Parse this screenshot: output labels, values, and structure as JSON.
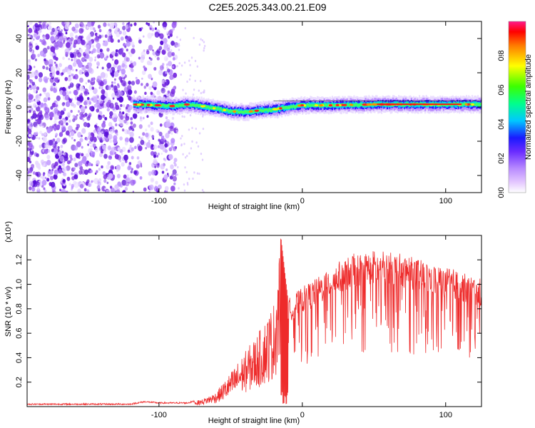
{
  "title": "C2E5.2025.343.00.21.E09",
  "colors": {
    "snr_line": "#ee2b2b",
    "noise": "#7a2ee0",
    "background": "#ffffff",
    "axis": "#000000"
  },
  "chart_data": [
    {
      "type": "heatmap",
      "name": "spectrogram",
      "xlabel": "Height of straight line (km)",
      "ylabel": "Frequency (Hz)",
      "xlim": [
        -192,
        125
      ],
      "ylim": [
        -50,
        50
      ],
      "xticks": [
        -100,
        0,
        100
      ],
      "xtick_labels": [
        "-100",
        "0",
        "100"
      ],
      "yticks": [
        -40,
        -20,
        0,
        20,
        40
      ],
      "ytick_labels": [
        "-40",
        "-20",
        "0",
        "20",
        "40"
      ],
      "noise_region_x": [
        -192,
        -88
      ],
      "signal_start_x": -118,
      "signal_track": [
        {
          "x": -118,
          "f": 1.5
        },
        {
          "x": -100,
          "f": 1.0
        },
        {
          "x": -90,
          "f": 0.5
        },
        {
          "x": -80,
          "f": 1.5
        },
        {
          "x": -70,
          "f": 0.5
        },
        {
          "x": -60,
          "f": -1.0
        },
        {
          "x": -50,
          "f": -2.5
        },
        {
          "x": -40,
          "f": -3.0
        },
        {
          "x": -30,
          "f": -2.0
        },
        {
          "x": -20,
          "f": -1.5
        },
        {
          "x": -10,
          "f": 0.0
        },
        {
          "x": 0,
          "f": 1.0
        },
        {
          "x": 20,
          "f": 1.0
        },
        {
          "x": 50,
          "f": 1.5
        },
        {
          "x": 80,
          "f": 1.5
        },
        {
          "x": 110,
          "f": 1.5
        },
        {
          "x": 125,
          "f": 1.5
        }
      ],
      "colorbar": {
        "label": "Normalized spectral amplitude",
        "range": [
          0,
          1
        ],
        "ticks": [
          0.0,
          0.2,
          0.4,
          0.6,
          0.8
        ],
        "tick_labels": [
          "0.0",
          "0.2",
          "0.4",
          "0.6",
          "0.8"
        ]
      }
    },
    {
      "type": "line",
      "name": "snr",
      "xlabel": "Height of straight line (km)",
      "ylabel": "SNR (10 * v/v)",
      "y_multiplier": "(x10⁴)",
      "xlim": [
        -192,
        125
      ],
      "ylim": [
        0,
        1.4
      ],
      "xticks": [
        -100,
        0,
        100
      ],
      "xtick_labels": [
        "-100",
        "0",
        "100"
      ],
      "yticks": [
        0.2,
        0.4,
        0.6,
        0.8,
        1.0,
        1.2
      ],
      "ytick_labels": [
        "0.2",
        "0.4",
        "0.6",
        "0.8",
        "1.0",
        "1.2"
      ],
      "envelope": [
        {
          "x": -192,
          "y": 0.02
        },
        {
          "x": -120,
          "y": 0.02
        },
        {
          "x": -110,
          "y": 0.04
        },
        {
          "x": -100,
          "y": 0.03
        },
        {
          "x": -80,
          "y": 0.03
        },
        {
          "x": -70,
          "y": 0.06
        },
        {
          "x": -60,
          "y": 0.12
        },
        {
          "x": -50,
          "y": 0.28
        },
        {
          "x": -40,
          "y": 0.45
        },
        {
          "x": -30,
          "y": 0.62
        },
        {
          "x": -20,
          "y": 0.85
        },
        {
          "x": -15,
          "y": 1.4
        },
        {
          "x": -10,
          "y": 0.88
        },
        {
          "x": 0,
          "y": 0.98
        },
        {
          "x": 10,
          "y": 1.05
        },
        {
          "x": 20,
          "y": 1.15
        },
        {
          "x": 35,
          "y": 1.25
        },
        {
          "x": 50,
          "y": 1.28
        },
        {
          "x": 70,
          "y": 1.25
        },
        {
          "x": 90,
          "y": 1.17
        },
        {
          "x": 105,
          "y": 1.13
        },
        {
          "x": 115,
          "y": 1.08
        },
        {
          "x": 125,
          "y": 1.05
        }
      ]
    }
  ]
}
